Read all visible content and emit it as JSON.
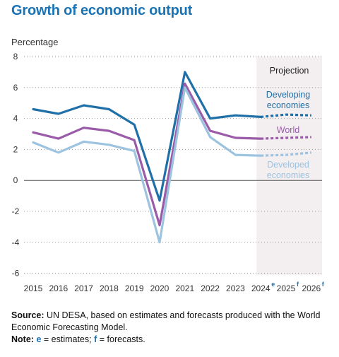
{
  "chart_data": {
    "type": "line",
    "title": "Growth of economic output",
    "ylabel": "Percentage",
    "xlabel": "",
    "categories": [
      "2015",
      "2016",
      "2017",
      "2018",
      "2019",
      "2020",
      "2021",
      "2022",
      "2023",
      "2024",
      "2025",
      "2026"
    ],
    "category_superscripts": [
      "",
      "",
      "",
      "",
      "",
      "",
      "",
      "",
      "",
      "e",
      "f",
      "f"
    ],
    "yticks": [
      "8",
      "6",
      "4",
      "2",
      "0",
      "-2",
      "-4",
      "-6"
    ],
    "ytick_values": [
      8,
      6,
      4,
      2,
      0,
      -2,
      -4,
      -6
    ],
    "ylim": [
      -6,
      8
    ],
    "projection_label": "Projection",
    "projection_from_index": 9,
    "series": [
      {
        "name": "Developing economies",
        "label_lines": [
          "Developing",
          "economies"
        ],
        "color": "#1f6fa8",
        "values": [
          4.6,
          4.3,
          4.85,
          4.6,
          3.6,
          -1.3,
          7.0,
          4.0,
          4.2,
          4.1,
          4.25,
          4.2
        ]
      },
      {
        "name": "World",
        "label_lines": [
          "World"
        ],
        "color": "#9a5ca8",
        "values": [
          3.1,
          2.7,
          3.4,
          3.2,
          2.6,
          -2.9,
          6.25,
          3.2,
          2.75,
          2.7,
          2.75,
          2.8
        ]
      },
      {
        "name": "Developed economies",
        "label_lines": [
          "Developed",
          "economies"
        ],
        "color": "#9cc3e0",
        "values": [
          2.45,
          1.8,
          2.5,
          2.3,
          1.9,
          -4.0,
          6.0,
          2.8,
          1.65,
          1.6,
          1.65,
          1.8
        ]
      }
    ]
  },
  "notes": {
    "source_label": "Source:",
    "source_text": "UN DESA, based on estimates and forecasts produced with the World Economic Forecasting Model.",
    "note_label": "Note:",
    "note_e": "e",
    "note_e_text": "= estimates;",
    "note_f": "f",
    "note_f_text": "= forecasts."
  },
  "colors": {
    "title": "#1a73b5",
    "projection_bg": "#f3eef0"
  }
}
